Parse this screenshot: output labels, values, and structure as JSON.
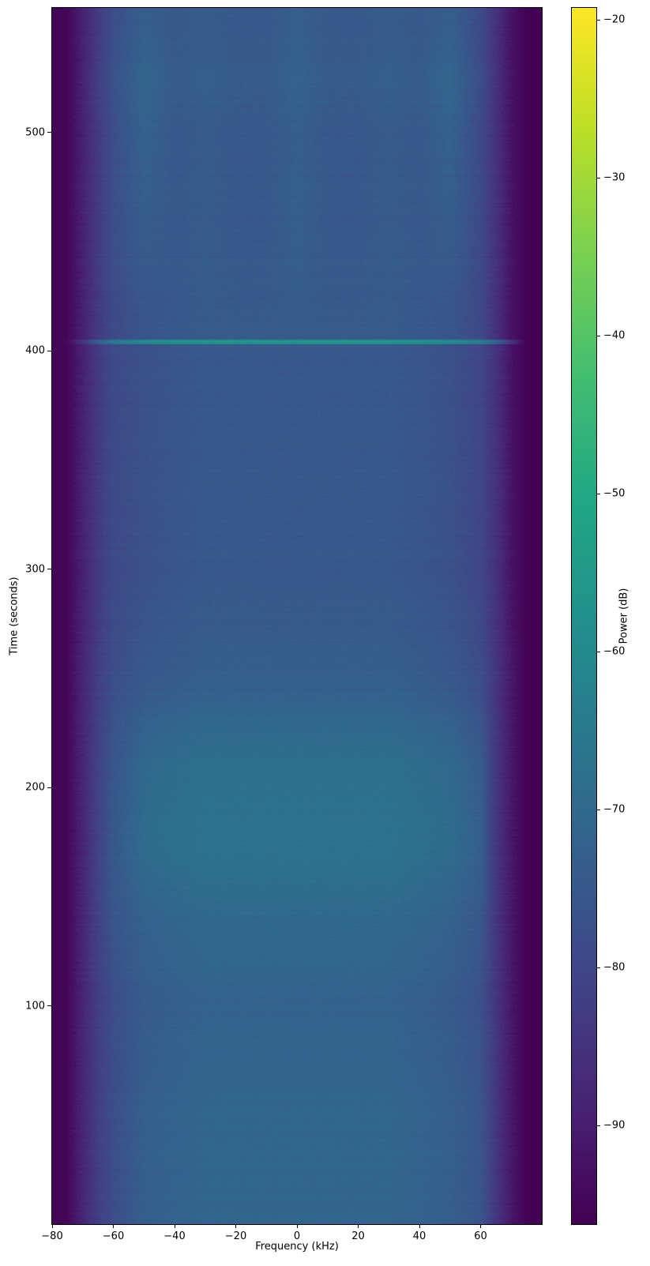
{
  "chart_data": {
    "type": "heatmap",
    "title": "",
    "xlabel": "Frequency (kHz)",
    "ylabel": "Time (seconds)",
    "colorbar_label": "Power (dB)",
    "colormap": "viridis",
    "xlim": [
      -80,
      80
    ],
    "ylim": [
      0,
      557
    ],
    "clim": [
      -96.25,
      -19.25
    ],
    "xticks": [
      -80,
      -60,
      -40,
      -20,
      0,
      20,
      40,
      60
    ],
    "yticks": [
      100,
      200,
      300,
      400,
      500
    ],
    "cticks": [
      -90,
      -80,
      -70,
      -60,
      -50,
      -40,
      -30,
      -20
    ],
    "freqs": [
      -80,
      -75,
      -70,
      -65,
      -60,
      -50,
      -40,
      -30,
      -20,
      -10,
      0,
      10,
      20,
      30,
      40,
      50,
      60,
      65,
      70,
      75,
      80
    ],
    "times": [
      5,
      50,
      100,
      140,
      175,
      210,
      250,
      300,
      350,
      400,
      404,
      408,
      450,
      500,
      525,
      550
    ],
    "power_db": [
      [
        -96,
        -95,
        -88,
        -82,
        -78,
        -73,
        -72,
        -71,
        -71,
        -71,
        -71,
        -71,
        -71,
        -71,
        -72,
        -73,
        -76,
        -84,
        -91,
        -96,
        -96
      ],
      [
        -96,
        -95,
        -88,
        -82,
        -78,
        -73,
        -72,
        -71,
        -71,
        -71,
        -71,
        -71,
        -71,
        -71,
        -72,
        -73,
        -76,
        -84,
        -91,
        -96,
        -96
      ],
      [
        -96,
        -95,
        -88,
        -82,
        -78,
        -74,
        -73,
        -72,
        -72,
        -72,
        -72,
        -72,
        -72,
        -72,
        -73,
        -74,
        -77,
        -84,
        -91,
        -96,
        -96
      ],
      [
        -96,
        -95,
        -88,
        -81,
        -76,
        -72,
        -71,
        -70,
        -70,
        -70,
        -70,
        -70,
        -70,
        -70,
        -71,
        -72,
        -75,
        -84,
        -91,
        -96,
        -96
      ],
      [
        -96,
        -95,
        -88,
        -81,
        -75,
        -69,
        -68,
        -67,
        -67,
        -67,
        -67,
        -67,
        -67,
        -67,
        -68,
        -69,
        -73,
        -84,
        -91,
        -96,
        -96
      ],
      [
        -96,
        -95,
        -88,
        -81,
        -76,
        -70,
        -69,
        -68,
        -68,
        -68,
        -68,
        -68,
        -68,
        -68,
        -69,
        -70,
        -74,
        -84,
        -91,
        -96,
        -96
      ],
      [
        -96,
        -95,
        -88,
        -82,
        -78,
        -75,
        -74,
        -73,
        -73,
        -73,
        -73,
        -73,
        -73,
        -73,
        -74,
        -75,
        -78,
        -84,
        -91,
        -96,
        -96
      ],
      [
        -96,
        -95,
        -89,
        -83,
        -79,
        -77,
        -76,
        -75,
        -75,
        -75,
        -75,
        -75,
        -75,
        -75,
        -76,
        -77,
        -80,
        -85,
        -92,
        -96,
        -96
      ],
      [
        -96,
        -95,
        -89,
        -83,
        -79,
        -77,
        -76,
        -75,
        -75,
        -75,
        -75,
        -75,
        -75,
        -75,
        -76,
        -77,
        -80,
        -85,
        -92,
        -96,
        -96
      ],
      [
        -96,
        -95,
        -89,
        -83,
        -79,
        -77,
        -76,
        -75,
        -75,
        -75,
        -75,
        -75,
        -75,
        -75,
        -76,
        -77,
        -80,
        -85,
        -92,
        -96,
        -96
      ],
      [
        -96,
        -94,
        -84,
        -72,
        -64,
        -58,
        -56,
        -55,
        -55,
        -55,
        -55,
        -55,
        -55,
        -55,
        -56,
        -58,
        -62,
        -70,
        -84,
        -96,
        -96
      ],
      [
        -96,
        -95,
        -89,
        -83,
        -79,
        -76,
        -75,
        -74,
        -74,
        -74,
        -74,
        -74,
        -74,
        -74,
        -75,
        -76,
        -79,
        -85,
        -92,
        -96,
        -96
      ],
      [
        -96,
        -95,
        -89,
        -83,
        -78,
        -74,
        -75,
        -74,
        -75,
        -75,
        -73,
        -75,
        -75,
        -74,
        -75,
        -74,
        -79,
        -85,
        -92,
        -96,
        -96
      ],
      [
        -96,
        -95,
        -89,
        -83,
        -78,
        -72,
        -75,
        -74,
        -75,
        -75,
        -73,
        -75,
        -75,
        -74,
        -75,
        -72,
        -79,
        -85,
        -92,
        -96,
        -96
      ],
      [
        -96,
        -95,
        -89,
        -82,
        -77,
        -71,
        -74,
        -73,
        -74,
        -74,
        -72,
        -74,
        -74,
        -73,
        -74,
        -71,
        -78,
        -85,
        -92,
        -96,
        -96
      ],
      [
        -96,
        -95,
        -89,
        -83,
        -78,
        -73,
        -75,
        -74,
        -75,
        -75,
        -73,
        -75,
        -75,
        -74,
        -75,
        -73,
        -79,
        -85,
        -92,
        -96,
        -96
      ]
    ]
  }
}
